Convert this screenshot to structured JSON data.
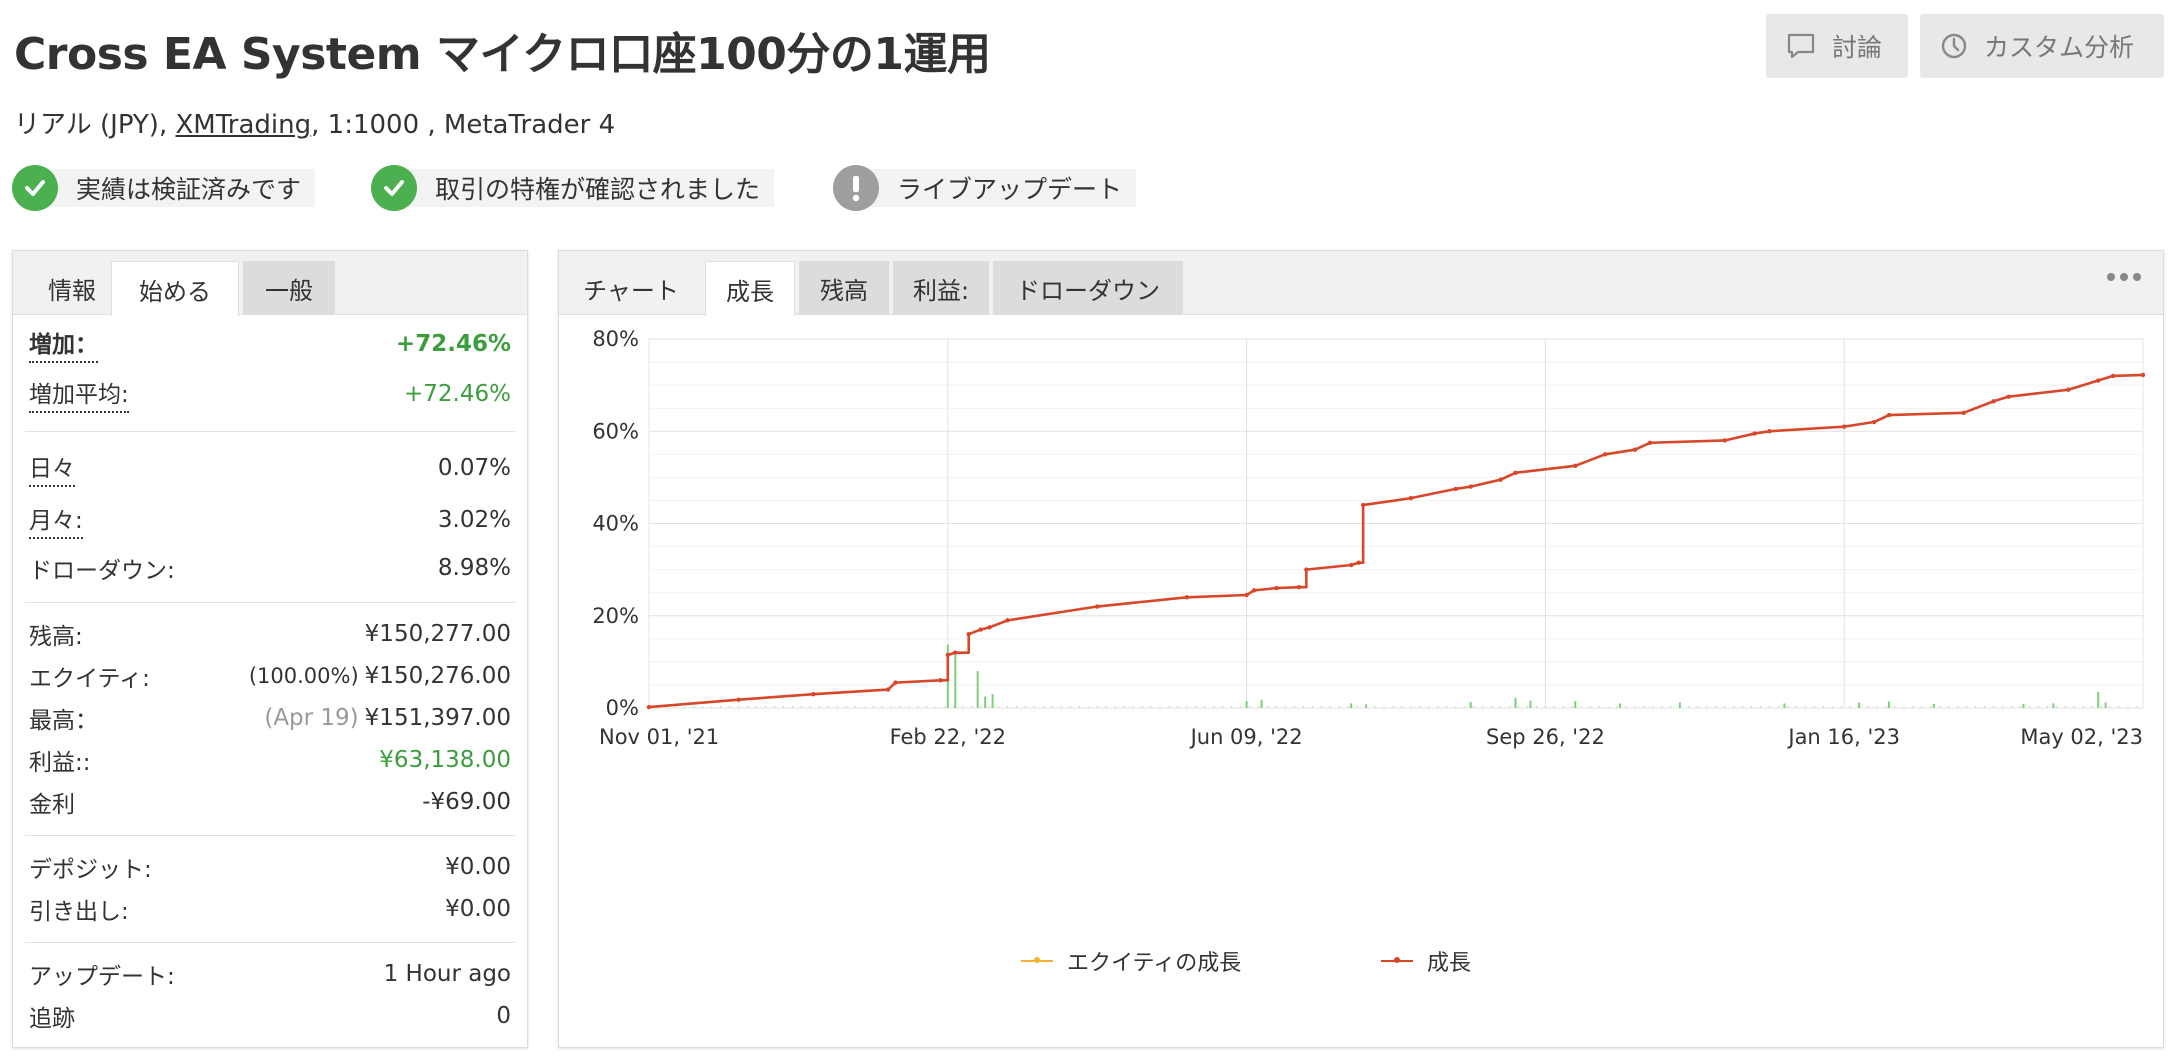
{
  "header": {
    "title": "Cross EA System マイクロ口座100分の1運用",
    "subtitle_prefix": "リアル (JPY), ",
    "broker": "XMTrading",
    "subtitle_suffix": ", 1:1000 , MetaTrader 4",
    "discuss_label": "討論",
    "custom_label": "カスタム分析"
  },
  "badges": [
    {
      "label": "実績は検証済みです",
      "status": "verified"
    },
    {
      "label": "取引の特権が確認されました",
      "status": "verified"
    },
    {
      "label": "ライブアップデート",
      "status": "warning"
    }
  ],
  "left_tabs": [
    "情報",
    "始める",
    "一般"
  ],
  "stats": {
    "gain": {
      "label": "増加：",
      "value": "+72.46%"
    },
    "abs_gain": {
      "label": "増加平均:",
      "value": "+72.46%"
    },
    "daily": {
      "label": "日々",
      "value": "0.07%"
    },
    "monthly": {
      "label": "月々:",
      "value": "3.02%"
    },
    "drawdown": {
      "label": "ドローダウン:",
      "value": "8.98%"
    },
    "balance": {
      "label": "残高:",
      "value": "¥150,277.00"
    },
    "equity": {
      "label": "エクイティ:",
      "pct": "(100.00%)",
      "value": "¥150,276.00"
    },
    "highest": {
      "label": "最高：",
      "date": "(Apr 19)",
      "value": "¥151,397.00"
    },
    "profit": {
      "label": "利益::",
      "value": "¥63,138.00"
    },
    "interest": {
      "label": "金利",
      "value": "-¥69.00"
    },
    "deposits": {
      "label": "デポジット:",
      "value": "¥0.00"
    },
    "withdrawals": {
      "label": "引き出し:",
      "value": "¥0.00"
    },
    "updated": {
      "label": "アップデート:",
      "value": "1 Hour ago"
    },
    "tracking": {
      "label": "追跡",
      "value": "0"
    }
  },
  "right_tabs": [
    "チャート",
    "成長",
    "残高",
    "利益:",
    "ドローダウン"
  ],
  "colors": {
    "growth": "#d9472b",
    "equity": "#f2b233",
    "bars": "#7ccf7c",
    "accent_green": "#4caf50"
  },
  "chart_data": {
    "type": "line",
    "x_ticks": [
      "Nov 01, '21",
      "Feb 22, '22",
      "Jun 09, '22",
      "Sep 26, '22",
      "Jan 16, '23",
      "May 02, '23"
    ],
    "y_ticks": [
      "0%",
      "20%",
      "40%",
      "60%",
      "80%"
    ],
    "ylim": [
      0,
      80
    ],
    "grid": true,
    "legend_position": "bottom",
    "series": [
      {
        "name": "エクイティの成長",
        "color": "#f2b233",
        "values": []
      },
      {
        "name": "成長",
        "color": "#d9472b",
        "x": [
          0,
          0.06,
          0.11,
          0.16,
          0.165,
          0.195,
          0.2,
          0.205,
          0.214,
          0.222,
          0.228,
          0.24,
          0.3,
          0.36,
          0.4,
          0.405,
          0.42,
          0.435,
          0.44,
          0.47,
          0.475,
          0.478,
          0.51,
          0.54,
          0.55,
          0.57,
          0.58,
          0.62,
          0.64,
          0.66,
          0.67,
          0.72,
          0.74,
          0.75,
          0.8,
          0.82,
          0.83,
          0.88,
          0.9,
          0.91,
          0.95,
          0.97,
          0.98,
          1.0
        ],
        "values": [
          0.2,
          1.8,
          3.0,
          4.0,
          5.5,
          6.0,
          11.5,
          12.0,
          16.0,
          17.0,
          17.5,
          19.0,
          22.0,
          24.0,
          24.5,
          25.5,
          26.0,
          26.2,
          30.0,
          31.0,
          31.5,
          44.0,
          45.5,
          47.5,
          48.0,
          49.5,
          51.0,
          52.5,
          55.0,
          56.0,
          57.5,
          58.0,
          59.5,
          60.0,
          61.0,
          62.0,
          63.5,
          64.0,
          66.5,
          67.5,
          69.0,
          71.0,
          72.0,
          72.2
        ]
      },
      {
        "name": "bars",
        "color": "#7ccf7c",
        "x": [
          0.2,
          0.205,
          0.22,
          0.225,
          0.23,
          0.4,
          0.41,
          0.47,
          0.48,
          0.55,
          0.58,
          0.59,
          0.62,
          0.65,
          0.69,
          0.76,
          0.81,
          0.83,
          0.86,
          0.92,
          0.94,
          0.97,
          0.975
        ],
        "values": [
          13.7,
          11.5,
          8.0,
          2.5,
          3.0,
          1.5,
          1.8,
          1.0,
          0.8,
          1.3,
          2.2,
          1.6,
          1.5,
          1.0,
          1.2,
          1.0,
          1.2,
          1.4,
          0.9,
          0.9,
          1.0,
          3.5,
          1.2
        ]
      }
    ]
  }
}
